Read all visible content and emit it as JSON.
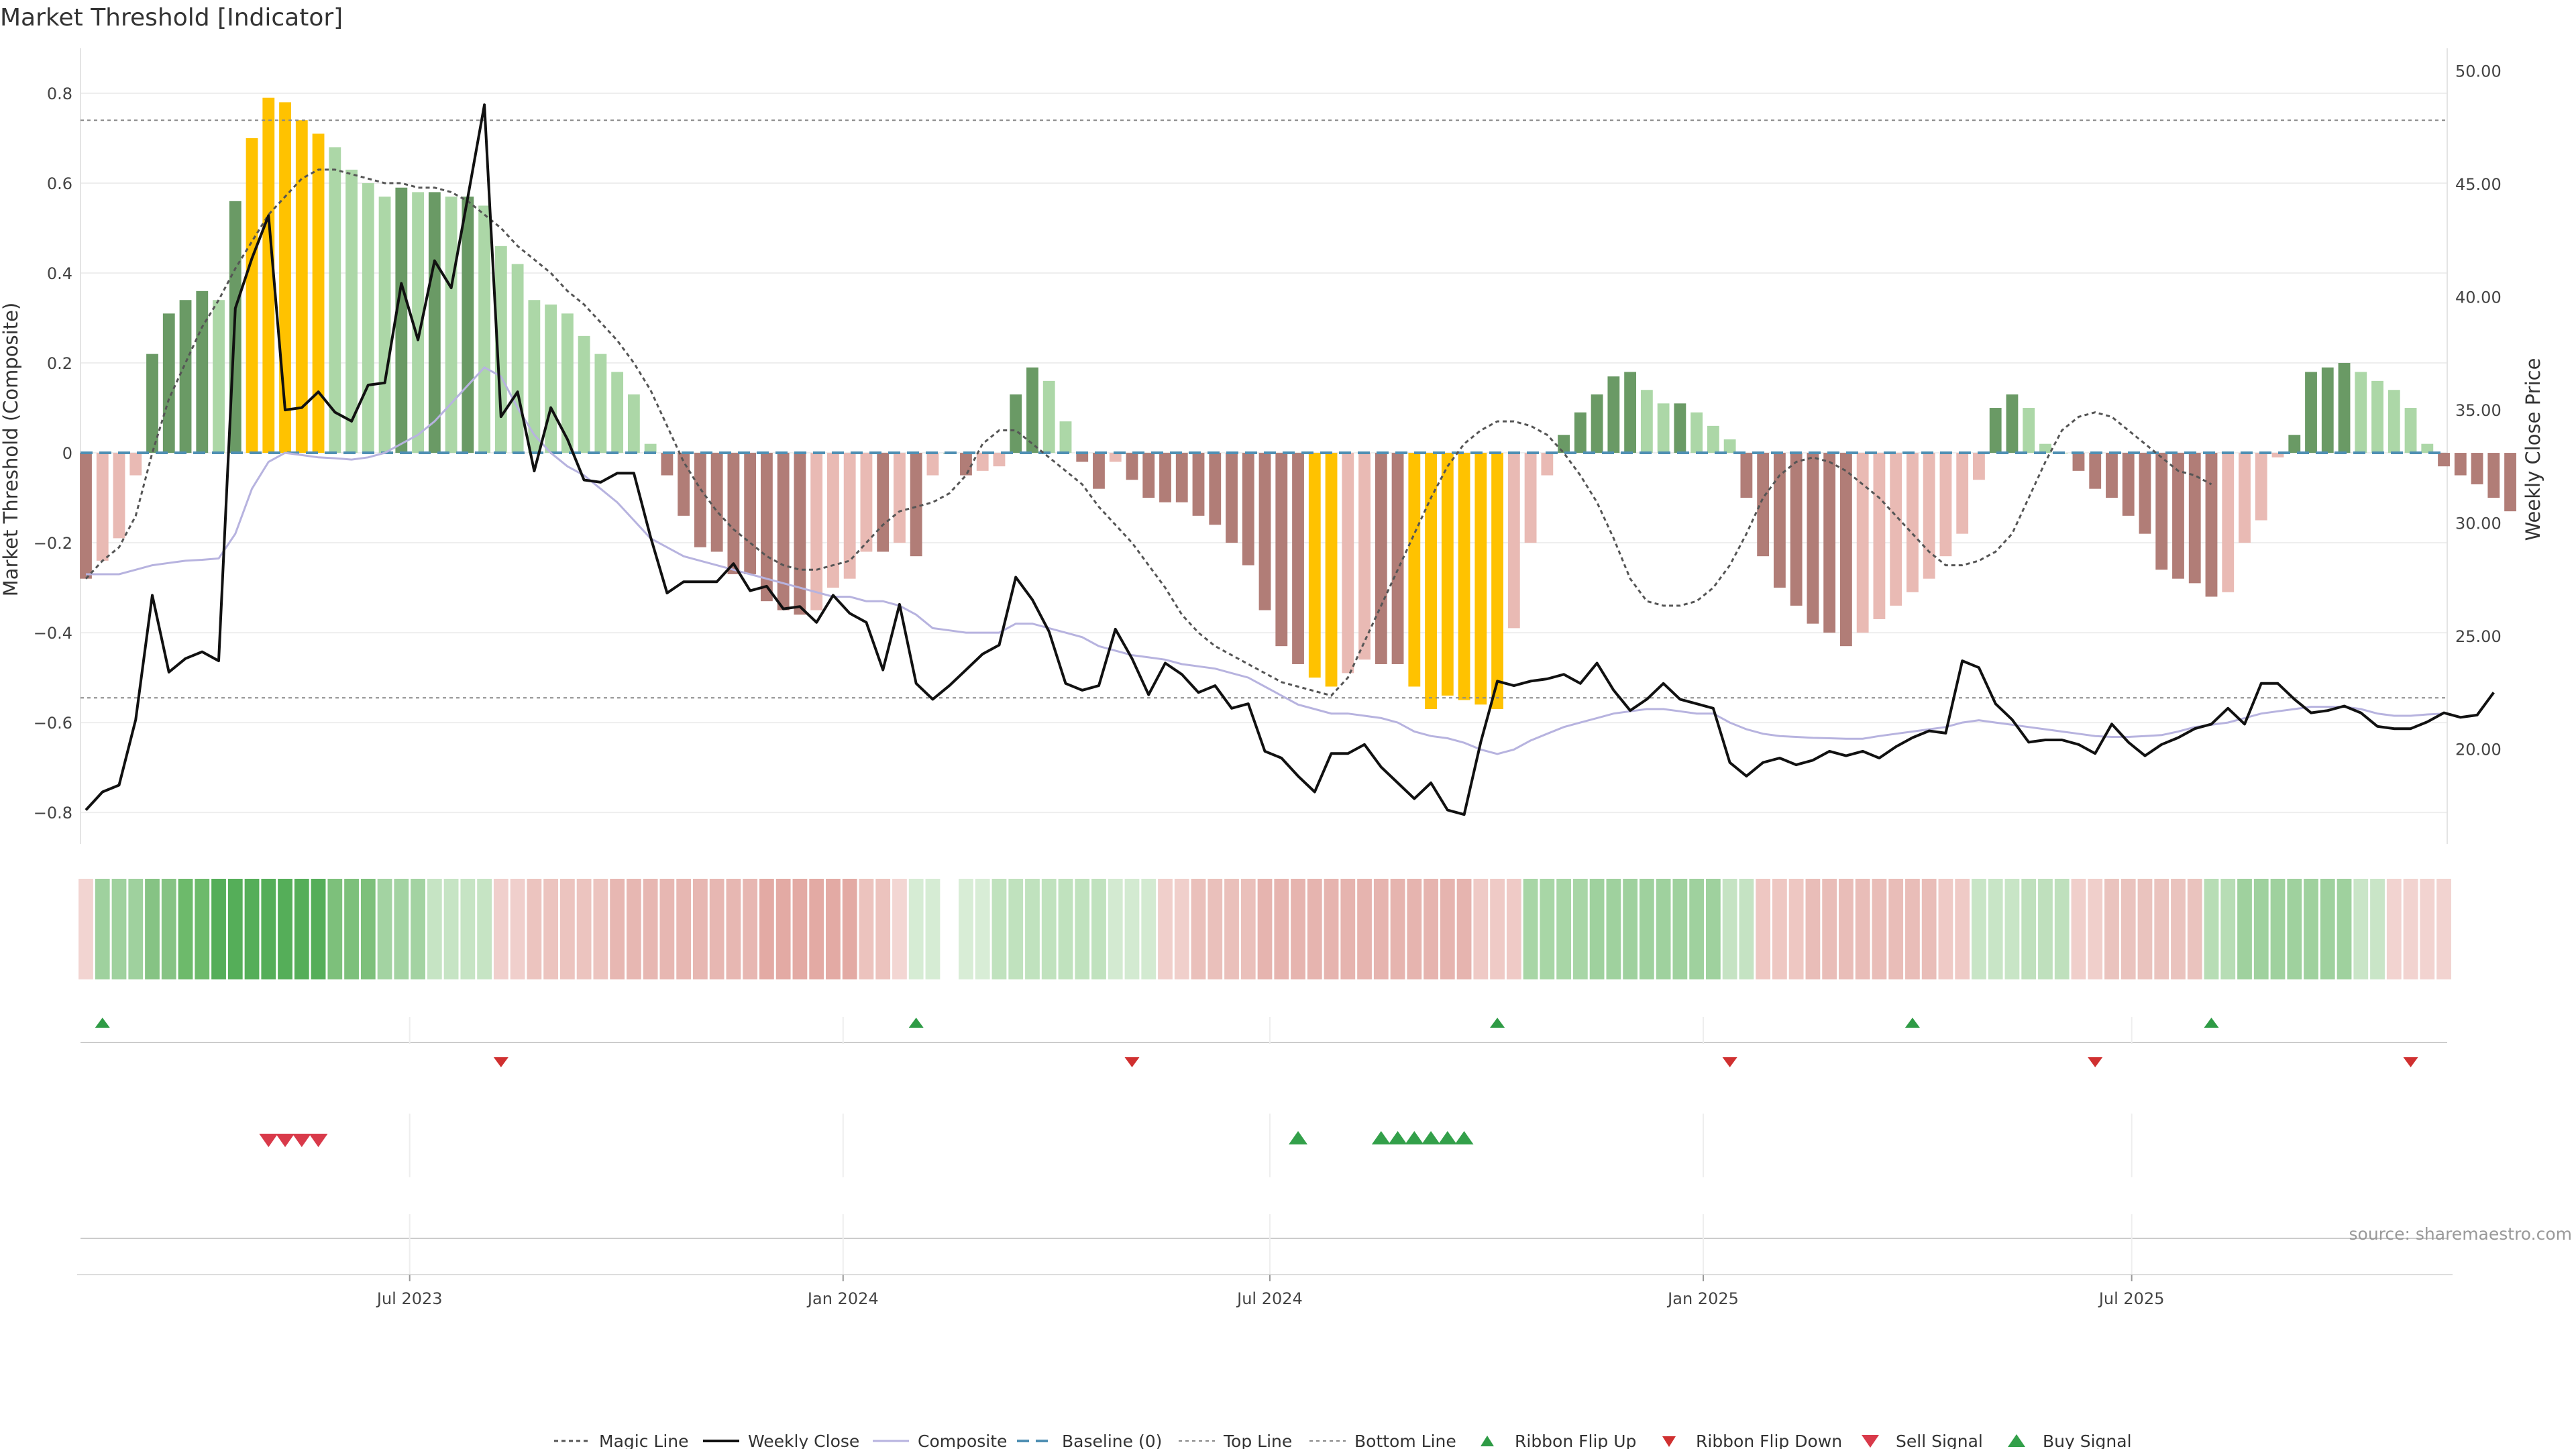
{
  "chart_data": {
    "type": "bar",
    "title": "Market Threshold [Indicator]",
    "ylabel": "Market Threshold (Composite)",
    "y2label": "Weekly Close Price",
    "ylim": [
      -0.87,
      0.9
    ],
    "y2lim": [
      15.8,
      51.0
    ],
    "yticks": [
      0.8,
      0.6,
      0.4,
      0.2,
      0,
      -0.2,
      -0.4,
      -0.6,
      -0.8
    ],
    "ytick_labels": [
      "0.8",
      "0.6",
      "0.4",
      "0.2",
      "0",
      "−0.2",
      "−0.4",
      "−0.6",
      "−0.8"
    ],
    "y2ticks": [
      50,
      45,
      40,
      35,
      30,
      25,
      20
    ],
    "y2tick_labels": [
      "50.00",
      "45.00",
      "40.00",
      "35.00",
      "30.00",
      "25.00",
      "20.00"
    ],
    "x_start_index": 0,
    "x_end_index": 142,
    "xticks": [
      {
        "label": "Jul 2023",
        "index": 19.5
      },
      {
        "label": "Jan 2024",
        "index": 45.6
      },
      {
        "label": "Jul 2024",
        "index": 71.3
      },
      {
        "label": "Jan 2025",
        "index": 97.4
      },
      {
        "label": "Jul 2025",
        "index": 123.2
      }
    ],
    "top_line": 0.74,
    "bottom_line": -0.545,
    "baseline": 0,
    "composite_bars": [
      -0.28,
      -0.24,
      -0.19,
      -0.05,
      0.22,
      0.31,
      0.34,
      0.36,
      0.34,
      0.56,
      0.7,
      0.79,
      0.78,
      0.74,
      0.71,
      0.68,
      0.63,
      0.6,
      0.57,
      0.59,
      0.58,
      0.58,
      0.57,
      0.57,
      0.55,
      0.46,
      0.42,
      0.34,
      0.33,
      0.31,
      0.26,
      0.22,
      0.18,
      0.13,
      0.02,
      -0.05,
      -0.14,
      -0.21,
      -0.22,
      -0.27,
      -0.27,
      -0.33,
      -0.35,
      -0.36,
      -0.35,
      -0.3,
      -0.28,
      -0.22,
      -0.22,
      -0.2,
      -0.23,
      -0.05,
      0,
      -0.05,
      -0.04,
      -0.03,
      0.13,
      0.19,
      0.16,
      0.07,
      -0.02,
      -0.08,
      -0.02,
      -0.06,
      -0.1,
      -0.11,
      -0.11,
      -0.14,
      -0.16,
      -0.2,
      -0.25,
      -0.35,
      -0.43,
      -0.47,
      -0.5,
      -0.52,
      -0.49,
      -0.46,
      -0.47,
      -0.47,
      -0.52,
      -0.57,
      -0.54,
      -0.55,
      -0.56,
      -0.57,
      -0.39,
      -0.2,
      -0.05,
      0.04,
      0.09,
      0.13,
      0.17,
      0.18,
      0.14,
      0.11,
      0.11,
      0.09,
      0.06,
      0.03,
      -0.1,
      -0.23,
      -0.3,
      -0.34,
      -0.38,
      -0.4,
      -0.43,
      -0.4,
      -0.37,
      -0.34,
      -0.31,
      -0.28,
      -0.23,
      -0.18,
      -0.06,
      0.1,
      0.13,
      0.1,
      0.02,
      0,
      -0.04,
      -0.08,
      -0.1,
      -0.14,
      -0.18,
      -0.26,
      -0.28,
      -0.29,
      -0.32,
      -0.31,
      -0.2,
      -0.15,
      -0.01,
      0.04,
      0.18,
      0.19,
      0.2,
      0.18,
      0.16,
      0.14,
      0.1,
      0.02,
      -0.03,
      -0.05,
      -0.07,
      -0.1,
      -0.13
    ],
    "magic_line": [
      -0.28,
      -0.24,
      -0.21,
      -0.14,
      0.0,
      0.12,
      0.2,
      0.28,
      0.34,
      0.41,
      0.47,
      0.53,
      0.57,
      0.61,
      0.63,
      0.63,
      0.62,
      0.61,
      0.6,
      0.6,
      0.59,
      0.59,
      0.58,
      0.56,
      0.53,
      0.5,
      0.46,
      0.43,
      0.4,
      0.36,
      0.33,
      0.29,
      0.25,
      0.2,
      0.14,
      0.06,
      -0.02,
      -0.08,
      -0.13,
      -0.17,
      -0.2,
      -0.23,
      -0.25,
      -0.26,
      -0.26,
      -0.25,
      -0.24,
      -0.2,
      -0.16,
      -0.13,
      -0.12,
      -0.11,
      -0.09,
      -0.05,
      0.02,
      0.05,
      0.05,
      0.02,
      -0.01,
      -0.04,
      -0.07,
      -0.12,
      -0.16,
      -0.2,
      -0.25,
      -0.3,
      -0.36,
      -0.4,
      -0.43,
      -0.45,
      -0.47,
      -0.49,
      -0.51,
      -0.52,
      -0.53,
      -0.54,
      -0.5,
      -0.42,
      -0.34,
      -0.26,
      -0.18,
      -0.1,
      -0.03,
      0.02,
      0.05,
      0.07,
      0.07,
      0.06,
      0.04,
      0.0,
      -0.05,
      -0.11,
      -0.19,
      -0.28,
      -0.33,
      -0.34,
      -0.34,
      -0.33,
      -0.3,
      -0.25,
      -0.18,
      -0.1,
      -0.05,
      -0.02,
      -0.01,
      -0.02,
      -0.04,
      -0.07,
      -0.1,
      -0.14,
      -0.18,
      -0.22,
      -0.25,
      -0.25,
      -0.24,
      -0.22,
      -0.18,
      -0.1,
      -0.02,
      0.05,
      0.08,
      0.09,
      0.08,
      0.05,
      0.02,
      -0.01,
      -0.04,
      -0.05,
      -0.07
    ],
    "weekly_close": [
      17.3,
      18.1,
      18.4,
      21.3,
      26.8,
      23.4,
      24.0,
      24.3,
      23.9,
      39.5,
      41.7,
      43.6,
      35.0,
      35.1,
      35.8,
      34.9,
      34.5,
      36.1,
      36.2,
      40.6,
      38.1,
      41.6,
      40.4,
      44.4,
      48.5,
      34.7,
      35.8,
      32.3,
      35.1,
      33.7,
      31.9,
      31.8,
      32.2,
      32.2,
      29.4,
      26.9,
      27.4,
      27.4,
      27.4,
      28.2,
      27.0,
      27.2,
      26.2,
      26.3,
      25.6,
      26.8,
      26.0,
      25.6,
      23.5,
      26.4,
      22.9,
      22.2,
      22.8,
      23.5,
      24.2,
      24.6,
      27.6,
      26.6,
      25.2,
      22.9,
      22.6,
      22.8,
      25.3,
      24.0,
      22.4,
      23.8,
      23.3,
      22.5,
      22.8,
      21.8,
      22.0,
      19.9,
      19.6,
      18.8,
      18.1,
      19.8,
      19.8,
      20.2,
      19.2,
      18.5,
      17.8,
      18.5,
      17.3,
      17.1,
      20.3,
      23.0,
      22.8,
      23.0,
      23.1,
      23.3,
      22.9,
      23.8,
      22.6,
      21.7,
      22.2,
      22.9,
      22.2,
      22.0,
      21.8,
      19.4,
      18.8,
      19.4,
      19.6,
      19.3,
      19.5,
      19.9,
      19.7,
      19.9,
      19.6,
      20.1,
      20.5,
      20.8,
      20.7,
      23.9,
      23.6,
      22.0,
      21.3,
      20.3,
      20.4,
      20.4,
      20.2,
      19.8,
      21.1,
      20.3,
      19.7,
      20.2,
      20.5,
      20.9,
      21.1,
      21.8,
      21.1,
      22.9,
      22.9,
      22.2,
      21.6,
      21.7,
      21.9,
      21.6,
      21.0,
      20.9,
      20.9,
      21.2,
      21.6,
      21.4,
      21.5,
      22.5
    ],
    "composite_line": [
      -0.27,
      -0.27,
      -0.27,
      -0.26,
      -0.25,
      -0.245,
      -0.24,
      -0.238,
      -0.235,
      -0.18,
      -0.08,
      -0.02,
      -0.0,
      -0.005,
      -0.01,
      -0.012,
      -0.015,
      -0.01,
      0.0,
      0.02,
      0.04,
      0.07,
      0.11,
      0.15,
      0.19,
      0.17,
      0.1,
      0.04,
      0.0,
      -0.03,
      -0.05,
      -0.08,
      -0.11,
      -0.15,
      -0.19,
      -0.21,
      -0.23,
      -0.24,
      -0.25,
      -0.26,
      -0.27,
      -0.28,
      -0.29,
      -0.3,
      -0.31,
      -0.32,
      -0.32,
      -0.33,
      -0.33,
      -0.34,
      -0.36,
      -0.39,
      -0.395,
      -0.4,
      -0.4,
      -0.4,
      -0.38,
      -0.38,
      -0.39,
      -0.4,
      -0.41,
      -0.43,
      -0.44,
      -0.45,
      -0.455,
      -0.46,
      -0.47,
      -0.475,
      -0.48,
      -0.49,
      -0.5,
      -0.52,
      -0.54,
      -0.56,
      -0.57,
      -0.58,
      -0.58,
      -0.585,
      -0.59,
      -0.6,
      -0.62,
      -0.63,
      -0.635,
      -0.645,
      -0.66,
      -0.67,
      -0.66,
      -0.64,
      -0.625,
      -0.61,
      -0.6,
      -0.59,
      -0.58,
      -0.575,
      -0.57,
      -0.57,
      -0.575,
      -0.58,
      -0.58,
      -0.6,
      -0.615,
      -0.625,
      -0.63,
      -0.632,
      -0.634,
      -0.635,
      -0.636,
      -0.636,
      -0.63,
      -0.625,
      -0.62,
      -0.615,
      -0.61,
      -0.6,
      -0.595,
      -0.6,
      -0.605,
      -0.61,
      -0.615,
      -0.62,
      -0.625,
      -0.63,
      -0.632,
      -0.632,
      -0.63,
      -0.628,
      -0.62,
      -0.61,
      -0.605,
      -0.6,
      -0.59,
      -0.58,
      -0.575,
      -0.57,
      -0.565,
      -0.565,
      -0.565,
      -0.57,
      -0.58,
      -0.585,
      -0.585,
      -0.582,
      -0.58
    ],
    "bar_colors": {
      "strong_up": "#6a9a65",
      "weak_up": "#acd7a7",
      "strong_down": "#b17d77",
      "weak_down": "#e9bab4",
      "extreme": "#ffc200"
    },
    "extreme_threshold": 0.7,
    "ribbon_segments": [
      {
        "from": 0,
        "to": 0,
        "color": "#f2d4d1"
      },
      {
        "from": 1,
        "to": 3,
        "color": "#9fd19e"
      },
      {
        "from": 4,
        "to": 5,
        "color": "#86c384"
      },
      {
        "from": 6,
        "to": 7,
        "color": "#6dba6b"
      },
      {
        "from": 8,
        "to": 14,
        "color": "#55ae59"
      },
      {
        "from": 15,
        "to": 17,
        "color": "#7dc07b"
      },
      {
        "from": 18,
        "to": 20,
        "color": "#a3d3a2"
      },
      {
        "from": 21,
        "to": 24,
        "color": "#c6e4c4"
      },
      {
        "from": 25,
        "to": 26,
        "color": "#f0cfcc"
      },
      {
        "from": 27,
        "to": 31,
        "color": "#ecc4bf"
      },
      {
        "from": 32,
        "to": 40,
        "color": "#e7b7b2"
      },
      {
        "from": 41,
        "to": 46,
        "color": "#e3aaa4"
      },
      {
        "from": 47,
        "to": 48,
        "color": "#ecc3be"
      },
      {
        "from": 49,
        "to": 49,
        "color": "#f3d6d3"
      },
      {
        "from": 50,
        "to": 51,
        "color": "#d6ecd4"
      },
      {
        "from": 53,
        "to": 54,
        "color": "#d8edd6"
      },
      {
        "from": 55,
        "to": 61,
        "color": "#c0e2be"
      },
      {
        "from": 62,
        "to": 64,
        "color": "#d3ead1"
      },
      {
        "from": 65,
        "to": 66,
        "color": "#f0cfcb"
      },
      {
        "from": 67,
        "to": 70,
        "color": "#eac0bb"
      },
      {
        "from": 71,
        "to": 83,
        "color": "#e6b4af"
      },
      {
        "from": 84,
        "to": 86,
        "color": "#efcac6"
      },
      {
        "from": 87,
        "to": 90,
        "color": "#a8d6a6"
      },
      {
        "from": 91,
        "to": 98,
        "color": "#9fd19e"
      },
      {
        "from": 99,
        "to": 100,
        "color": "#c5e3c3"
      },
      {
        "from": 101,
        "to": 103,
        "color": "#eec7c2"
      },
      {
        "from": 104,
        "to": 111,
        "color": "#e9bdb8"
      },
      {
        "from": 112,
        "to": 113,
        "color": "#efcac6"
      },
      {
        "from": 114,
        "to": 116,
        "color": "#c8e5c6"
      },
      {
        "from": 117,
        "to": 119,
        "color": "#bfe0bd"
      },
      {
        "from": 120,
        "to": 121,
        "color": "#f0cfcb"
      },
      {
        "from": 122,
        "to": 127,
        "color": "#eac3be"
      },
      {
        "from": 128,
        "to": 129,
        "color": "#b7ddb5"
      },
      {
        "from": 130,
        "to": 136,
        "color": "#9fd19e"
      },
      {
        "from": 137,
        "to": 138,
        "color": "#c9e5c7"
      },
      {
        "from": 139,
        "to": 142,
        "color": "#f2d3d0"
      }
    ],
    "ribbon_flip_up": [
      1,
      50,
      85,
      110,
      128
    ],
    "ribbon_flip_down": [
      25,
      63,
      99,
      121,
      140
    ],
    "sell_signal": [
      11,
      12,
      13,
      14
    ],
    "buy_signal": [
      73,
      78,
      79,
      80,
      81,
      82,
      83
    ],
    "legend": [
      "Magic Line",
      "Weekly Close",
      "Composite",
      "Baseline (0)",
      "Top Line",
      "Bottom Line",
      "Ribbon Flip Up",
      "Ribbon Flip Down",
      "Sell Signal",
      "Buy Signal"
    ],
    "source": "source: sharemaestro.com"
  },
  "colors": {
    "magic": "#555555",
    "close": "#111111",
    "composite": "#b7b3df",
    "baseline": "#4f8fb3",
    "guide": "#888888",
    "up_marker": "#2e9b45",
    "down_marker": "#d03030",
    "sell_marker": "#d93a4a",
    "buy_marker": "#33a04a"
  }
}
